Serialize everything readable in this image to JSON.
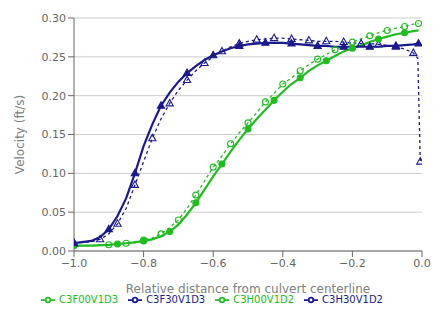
{
  "chart_data": {
    "type": "line",
    "x_label": "Relative distance from culvert centerline",
    "y_label": "Velocity (ft/s)",
    "xlim": [
      -1.0,
      0.0
    ],
    "ylim": [
      0.0,
      0.3
    ],
    "xticks": [
      {
        "value": -1.0,
        "label": "−1.0"
      },
      {
        "value": -0.8,
        "label": "−0.8"
      },
      {
        "value": -0.6,
        "label": "−0.6"
      },
      {
        "value": -0.4,
        "label": "−0.4"
      },
      {
        "value": -0.2,
        "label": "−0.2"
      },
      {
        "value": 0.0,
        "label": "0.0"
      }
    ],
    "yticks": [
      {
        "value": 0.0,
        "label": "0.00"
      },
      {
        "value": 0.05,
        "label": "0.05"
      },
      {
        "value": 0.1,
        "label": "0.10"
      },
      {
        "value": 0.15,
        "label": "0.15"
      },
      {
        "value": 0.2,
        "label": "0.20"
      },
      {
        "value": 0.25,
        "label": "0.25"
      },
      {
        "value": 0.3,
        "label": "0.30"
      }
    ],
    "grid": true,
    "legend": "bottom",
    "series": [
      {
        "name": "C3H00V1D2",
        "color": "#22bb22",
        "line_style": "dotted",
        "marker": "open_circle",
        "x": [
          -1.0,
          -0.95,
          -0.9,
          -0.875,
          -0.85,
          -0.825,
          -0.8,
          -0.775,
          -0.75,
          -0.725,
          -0.7,
          -0.675,
          -0.65,
          -0.625,
          -0.6,
          -0.575,
          -0.55,
          -0.525,
          -0.5,
          -0.475,
          -0.45,
          -0.425,
          -0.4,
          -0.375,
          -0.35,
          -0.325,
          -0.3,
          -0.275,
          -0.25,
          -0.225,
          -0.2,
          -0.175,
          -0.15,
          -0.125,
          -0.1,
          -0.075,
          -0.05,
          -0.025,
          -0.01
        ],
        "values": [
          0.007,
          0.007,
          0.008,
          0.009,
          0.01,
          0.012,
          0.014,
          0.017,
          0.022,
          0.03,
          0.04,
          0.055,
          0.072,
          0.09,
          0.108,
          0.122,
          0.138,
          0.152,
          0.165,
          0.178,
          0.192,
          0.203,
          0.215,
          0.223,
          0.232,
          0.24,
          0.247,
          0.253,
          0.259,
          0.264,
          0.269,
          0.273,
          0.277,
          0.281,
          0.284,
          0.287,
          0.289,
          0.292,
          0.293
        ]
      },
      {
        "name": "C3H30V1D2",
        "color": "#1a1a8c",
        "line_style": "dotted",
        "marker": "open_triangle",
        "x": [
          -1.0,
          -0.95,
          -0.925,
          -0.9,
          -0.875,
          -0.85,
          -0.825,
          -0.8,
          -0.775,
          -0.75,
          -0.725,
          -0.7,
          -0.675,
          -0.65,
          -0.625,
          -0.6,
          -0.575,
          -0.55,
          -0.525,
          -0.5,
          -0.475,
          -0.45,
          -0.425,
          -0.4,
          -0.375,
          -0.35,
          -0.325,
          -0.3,
          -0.275,
          -0.25,
          -0.225,
          -0.2,
          -0.175,
          -0.15,
          -0.125,
          -0.1,
          -0.075,
          -0.05,
          -0.025,
          -0.012,
          -0.005
        ],
        "values": [
          0.01,
          0.012,
          0.015,
          0.022,
          0.035,
          0.055,
          0.085,
          0.115,
          0.145,
          0.17,
          0.19,
          0.207,
          0.22,
          0.232,
          0.242,
          0.25,
          0.257,
          0.263,
          0.267,
          0.27,
          0.272,
          0.273,
          0.274,
          0.274,
          0.273,
          0.272,
          0.271,
          0.27,
          0.27,
          0.27,
          0.269,
          0.268,
          0.267,
          0.267,
          0.266,
          0.265,
          0.263,
          0.26,
          0.255,
          0.248,
          0.115
        ]
      },
      {
        "name": "C3F00V1D3",
        "color": "#22bb22",
        "line_style": "solid",
        "marker": "circle",
        "x": [
          -1.0,
          -0.95,
          -0.9,
          -0.875,
          -0.85,
          -0.825,
          -0.8,
          -0.775,
          -0.75,
          -0.725,
          -0.7,
          -0.675,
          -0.65,
          -0.625,
          -0.6,
          -0.575,
          -0.55,
          -0.525,
          -0.5,
          -0.475,
          -0.45,
          -0.425,
          -0.4,
          -0.375,
          -0.35,
          -0.325,
          -0.3,
          -0.275,
          -0.25,
          -0.225,
          -0.2,
          -0.175,
          -0.15,
          -0.125,
          -0.1,
          -0.075,
          -0.05,
          -0.025,
          -0.01
        ],
        "values": [
          0.007,
          0.007,
          0.008,
          0.009,
          0.01,
          0.011,
          0.013,
          0.015,
          0.019,
          0.025,
          0.034,
          0.047,
          0.062,
          0.079,
          0.096,
          0.112,
          0.128,
          0.143,
          0.157,
          0.17,
          0.182,
          0.194,
          0.205,
          0.215,
          0.223,
          0.232,
          0.239,
          0.245,
          0.251,
          0.257,
          0.261,
          0.265,
          0.269,
          0.273,
          0.276,
          0.279,
          0.281,
          0.283,
          0.284
        ]
      },
      {
        "name": "C3F30V1D3",
        "color": "#1a1a8c",
        "line_style": "solid",
        "marker": "triangle",
        "x": [
          -1.0,
          -0.95,
          -0.925,
          -0.9,
          -0.875,
          -0.85,
          -0.825,
          -0.8,
          -0.775,
          -0.75,
          -0.725,
          -0.7,
          -0.675,
          -0.65,
          -0.625,
          -0.6,
          -0.575,
          -0.55,
          -0.525,
          -0.5,
          -0.475,
          -0.45,
          -0.425,
          -0.4,
          -0.375,
          -0.35,
          -0.325,
          -0.3,
          -0.275,
          -0.25,
          -0.225,
          -0.2,
          -0.175,
          -0.15,
          -0.125,
          -0.1,
          -0.075,
          -0.05,
          -0.025,
          -0.01
        ],
        "values": [
          0.01,
          0.013,
          0.018,
          0.028,
          0.045,
          0.068,
          0.1,
          0.135,
          0.163,
          0.187,
          0.204,
          0.218,
          0.229,
          0.238,
          0.246,
          0.252,
          0.257,
          0.261,
          0.264,
          0.266,
          0.267,
          0.268,
          0.268,
          0.268,
          0.267,
          0.266,
          0.265,
          0.264,
          0.264,
          0.263,
          0.263,
          0.263,
          0.263,
          0.263,
          0.263,
          0.264,
          0.264,
          0.265,
          0.266,
          0.267
        ]
      }
    ]
  }
}
